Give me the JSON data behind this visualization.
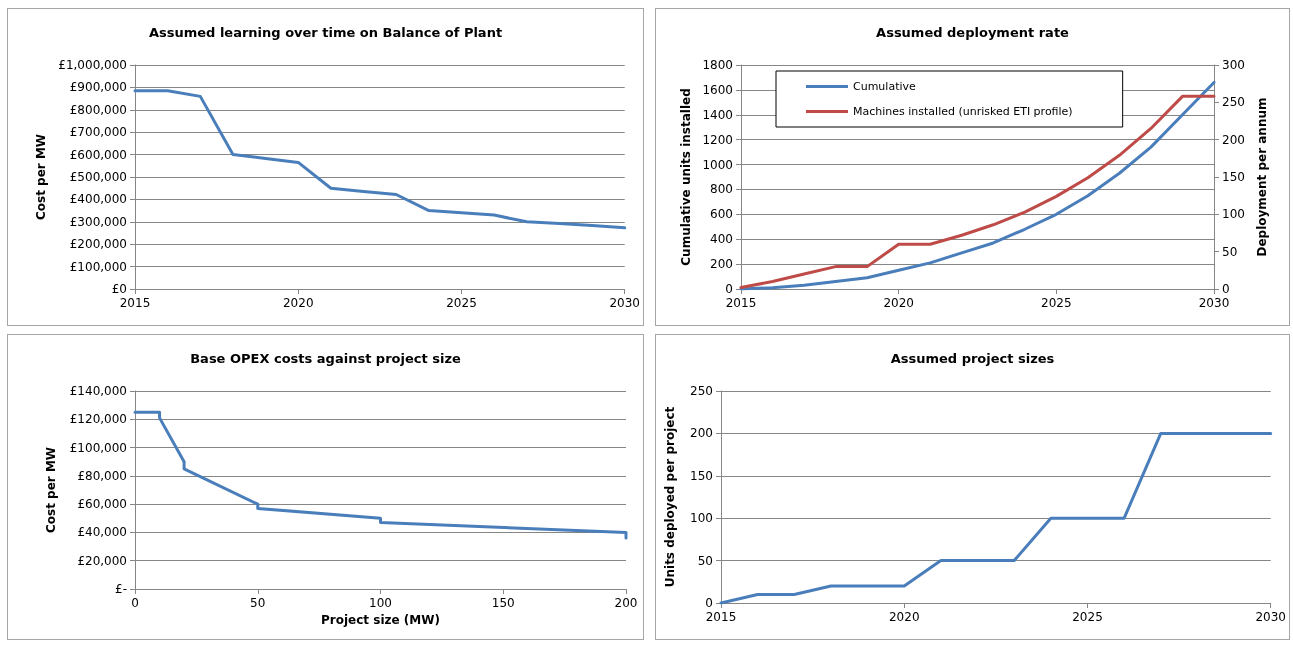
{
  "chart_data": [
    {
      "type": "line",
      "title": "Assumed learning over time on Balance of Plant",
      "ylabel": "Cost per MW",
      "x": [
        2015,
        2016,
        2017,
        2018,
        2019,
        2020,
        2021,
        2022,
        2023,
        2024,
        2025,
        2026,
        2027,
        2028,
        2029,
        2030
      ],
      "series": [
        {
          "color": "#4a7ebb",
          "values": [
            885000,
            885000,
            860000,
            600000,
            583000,
            565000,
            450000,
            435000,
            422000,
            350000,
            340000,
            330000,
            300000,
            292000,
            283000,
            273000
          ]
        }
      ],
      "xlim": [
        2015,
        2030
      ],
      "xticks": [
        2015,
        2020,
        2025,
        2030
      ],
      "ylim": [
        0,
        1000000
      ],
      "yticks": [
        {
          "value": 0,
          "label": "£0"
        },
        {
          "value": 100000,
          "label": "£100,000"
        },
        {
          "value": 200000,
          "label": "£200,000"
        },
        {
          "value": 300000,
          "label": "£300,000"
        },
        {
          "value": 400000,
          "label": "£400,000"
        },
        {
          "value": 500000,
          "label": "£500,000"
        },
        {
          "value": 600000,
          "label": "£600,000"
        },
        {
          "value": 700000,
          "label": "£700,000"
        },
        {
          "value": 800000,
          "label": "£800,000"
        },
        {
          "value": 900000,
          "label": "£900,000"
        },
        {
          "value": 1000000,
          "label": "£1,000,000"
        }
      ],
      "grid": "y",
      "legend": false,
      "marker": "none",
      "line_style": "solid"
    },
    {
      "type": "line",
      "title": "Assumed deployment rate",
      "ylabel": "Cumulative units installed",
      "y2label": "Deployment per annum",
      "x": [
        2015,
        2016,
        2017,
        2018,
        2019,
        2020,
        2021,
        2022,
        2023,
        2024,
        2025,
        2026,
        2027,
        2028,
        2029,
        2030
      ],
      "series": [
        {
          "name": "Cumulative",
          "color": "#4a7ebb",
          "values": [
            0,
            10,
            30,
            60,
            90,
            150,
            210,
            290,
            370,
            480,
            600,
            750,
            930,
            1140,
            1400,
            1660
          ]
        },
        {
          "name": "Machines installed (unrisked ETI profile)",
          "color": "#be4b48",
          "axis": "y2",
          "values": [
            2,
            10,
            20,
            30,
            30,
            60,
            60,
            72,
            86,
            103,
            124,
            149,
            179,
            215,
            258,
            258
          ]
        }
      ],
      "xlim": [
        2015,
        2030
      ],
      "xticks": [
        2015,
        2020,
        2025,
        2030
      ],
      "ylim": [
        0,
        1800
      ],
      "yticks": [
        0,
        200,
        400,
        600,
        800,
        1000,
        1200,
        1400,
        1600,
        1800
      ],
      "y2lim": [
        0,
        300
      ],
      "y2ticks": [
        0,
        50,
        100,
        150,
        200,
        250,
        300
      ],
      "grid": "y",
      "legend": "top left",
      "marker": "none",
      "line_style": "solid"
    },
    {
      "type": "line",
      "title": "Base OPEX costs against project size",
      "xlabel": "Project size (MW)",
      "ylabel": "Cost per MW",
      "x": [
        0,
        10,
        10,
        20,
        20,
        50,
        50,
        100,
        100,
        200,
        200
      ],
      "series": [
        {
          "color": "#4a7ebb",
          "values": [
            125000,
            125000,
            121000,
            90000,
            85000,
            60000,
            57000,
            50000,
            47000,
            40000,
            36000
          ]
        }
      ],
      "xlim": [
        0,
        200
      ],
      "xticks": [
        0,
        50,
        100,
        150,
        200
      ],
      "ylim": [
        0,
        140000
      ],
      "yticks": [
        {
          "value": 0,
          "label": "£-"
        },
        {
          "value": 20000,
          "label": "£20,000"
        },
        {
          "value": 40000,
          "label": "£40,000"
        },
        {
          "value": 60000,
          "label": "£60,000"
        },
        {
          "value": 80000,
          "label": "£80,000"
        },
        {
          "value": 100000,
          "label": "£100,000"
        },
        {
          "value": 120000,
          "label": "£120,000"
        },
        {
          "value": 140000,
          "label": "£140,000"
        }
      ],
      "grid": "y",
      "legend": false,
      "marker": "none",
      "line_style": "solid"
    },
    {
      "type": "line",
      "title": "Assumed project sizes",
      "ylabel": "Units deployed per project",
      "x": [
        2015,
        2016,
        2017,
        2018,
        2019,
        2020,
        2021,
        2022,
        2023,
        2024,
        2025,
        2026,
        2027,
        2028,
        2029,
        2030
      ],
      "series": [
        {
          "color": "#4a7ebb",
          "values": [
            0,
            10,
            10,
            20,
            20,
            20,
            50,
            50,
            50,
            100,
            100,
            100,
            200,
            200,
            200,
            200
          ]
        }
      ],
      "xlim": [
        2015,
        2030
      ],
      "xticks": [
        2015,
        2020,
        2025,
        2030
      ],
      "ylim": [
        0,
        250
      ],
      "yticks": [
        0,
        50,
        100,
        150,
        200,
        250
      ],
      "grid": "y",
      "legend": false,
      "marker": "none",
      "line_style": "solid"
    }
  ]
}
